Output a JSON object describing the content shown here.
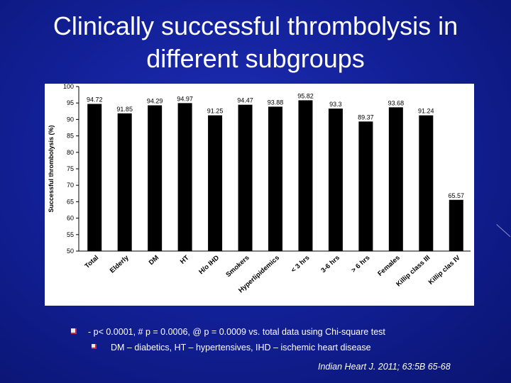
{
  "slide": {
    "title": "Clinically successful thrombolysis in different subgroups"
  },
  "chart_data": {
    "type": "bar",
    "ylabel": "Successful thrombolysis (%)",
    "xlabel": "",
    "ylim": [
      50,
      100
    ],
    "yticks": [
      50,
      55,
      60,
      65,
      70,
      75,
      80,
      85,
      90,
      95,
      100
    ],
    "grid": false,
    "legend": "none",
    "bar_color": "#000000",
    "categories": [
      "Total",
      "Elderly",
      "DM",
      "HT",
      "H/o IHD",
      "Smokers",
      "Hyperlipidemics",
      "< 3 hrs",
      "3-6 hrs",
      "> 6 hrs",
      "Females",
      "Killip class III",
      "Killip clas IV"
    ],
    "values": [
      94.72,
      91.85,
      94.29,
      94.97,
      91.25,
      94.47,
      93.88,
      95.82,
      93.3,
      89.37,
      93.68,
      91.24,
      65.57
    ],
    "value_labels": [
      "94.72",
      "91.85",
      "94.29",
      "94.97",
      "91.25",
      "94.47",
      "93.88",
      "95.82",
      "93.3",
      "89.37",
      "93.68",
      "91.24",
      "65.57"
    ]
  },
  "footnotes": {
    "line1": "- p< 0.0001, # p = 0.0006, @  p = 0.0009 vs. total data using Chi-square test",
    "line2": "DM – diabetics, HT – hypertensives, IHD – ischemic heart disease"
  },
  "citation": "Indian Heart J. 2011; 63:5B 65-68"
}
